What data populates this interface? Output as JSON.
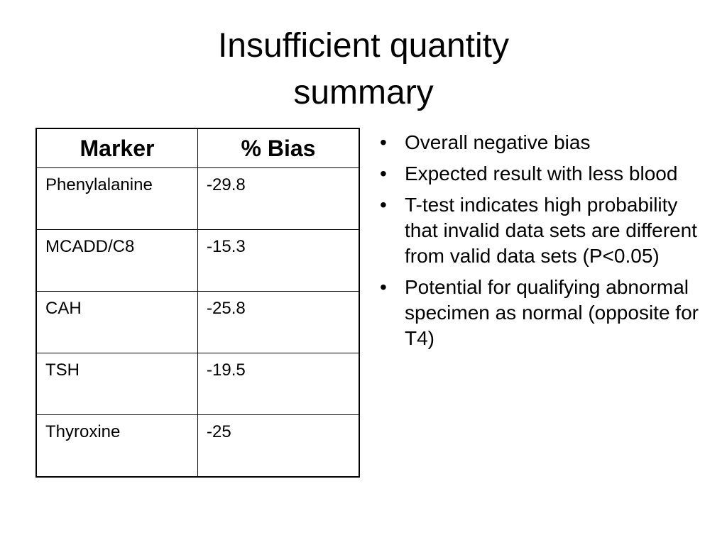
{
  "title_lines": [
    "Insufficient quantity",
    "summary"
  ],
  "table": {
    "header": [
      "Marker",
      "% Bias"
    ],
    "rows": [
      [
        "Phenylalanine",
        -29.8
      ],
      [
        "MCADD/C8",
        -15.3
      ],
      [
        "CAH",
        -25.8
      ],
      [
        "TSH",
        -19.5
      ],
      [
        "Thyroxine",
        -25
      ]
    ]
  },
  "bullets": [
    "Overall negative bias",
    "Expected result with less blood",
    "T-test indicates high probability that invalid data sets are different from valid data sets (P<0.05)",
    "Potential for qualifying abnormal specimen as normal (opposite for T4)"
  ]
}
